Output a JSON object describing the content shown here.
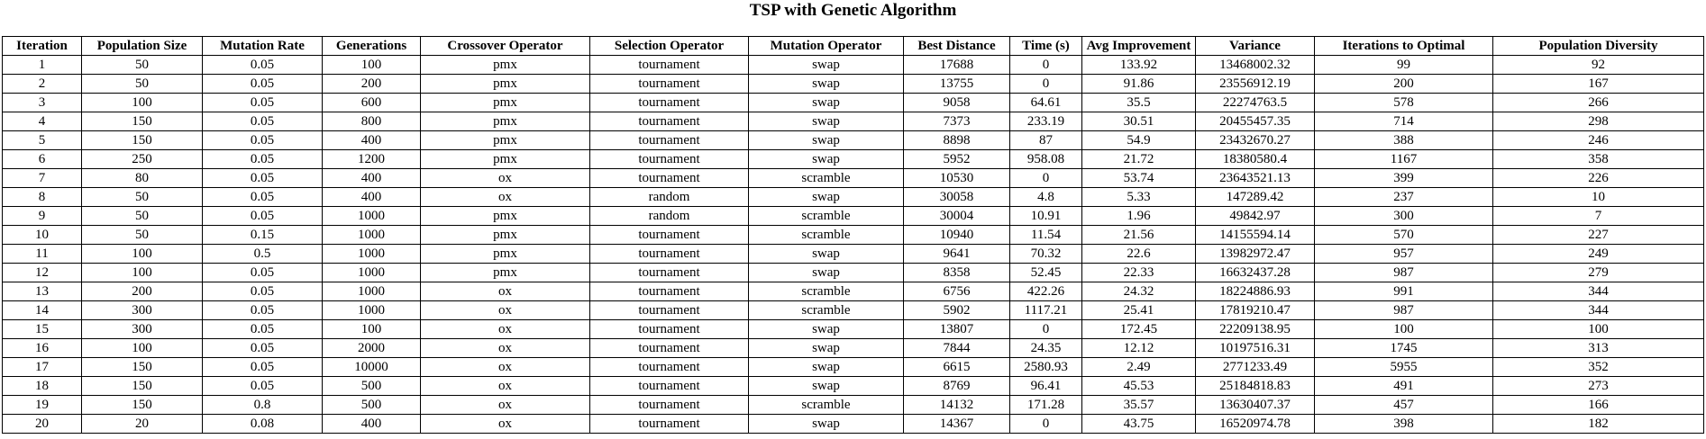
{
  "title": "TSP with Genetic Algorithm",
  "columns": [
    "Iteration",
    "Population Size",
    "Mutation Rate",
    "Generations",
    "Crossover Operator",
    "Selection Operator",
    "Mutation Operator",
    "Best Distance",
    "Time (s)",
    "Avg Improvement",
    "Variance",
    "Iterations to Optimal",
    "Population Diversity"
  ],
  "rows": [
    [
      "1",
      "50",
      "0.05",
      "100",
      "pmx",
      "tournament",
      "swap",
      "17688",
      "0",
      "133.92",
      "13468002.32",
      "99",
      "92"
    ],
    [
      "2",
      "50",
      "0.05",
      "200",
      "pmx",
      "tournament",
      "swap",
      "13755",
      "0",
      "91.86",
      "23556912.19",
      "200",
      "167"
    ],
    [
      "3",
      "100",
      "0.05",
      "600",
      "pmx",
      "tournament",
      "swap",
      "9058",
      "64.61",
      "35.5",
      "22274763.5",
      "578",
      "266"
    ],
    [
      "4",
      "150",
      "0.05",
      "800",
      "pmx",
      "tournament",
      "swap",
      "7373",
      "233.19",
      "30.51",
      "20455457.35",
      "714",
      "298"
    ],
    [
      "5",
      "150",
      "0.05",
      "400",
      "pmx",
      "tournament",
      "swap",
      "8898",
      "87",
      "54.9",
      "23432670.27",
      "388",
      "246"
    ],
    [
      "6",
      "250",
      "0.05",
      "1200",
      "pmx",
      "tournament",
      "swap",
      "5952",
      "958.08",
      "21.72",
      "18380580.4",
      "1167",
      "358"
    ],
    [
      "7",
      "80",
      "0.05",
      "400",
      "ox",
      "tournament",
      "scramble",
      "10530",
      "0",
      "53.74",
      "23643521.13",
      "399",
      "226"
    ],
    [
      "8",
      "50",
      "0.05",
      "400",
      "ox",
      "random",
      "swap",
      "30058",
      "4.8",
      "5.33",
      "147289.42",
      "237",
      "10"
    ],
    [
      "9",
      "50",
      "0.05",
      "1000",
      "pmx",
      "random",
      "scramble",
      "30004",
      "10.91",
      "1.96",
      "49842.97",
      "300",
      "7"
    ],
    [
      "10",
      "50",
      "0.15",
      "1000",
      "pmx",
      "tournament",
      "scramble",
      "10940",
      "11.54",
      "21.56",
      "14155594.14",
      "570",
      "227"
    ],
    [
      "11",
      "100",
      "0.5",
      "1000",
      "pmx",
      "tournament",
      "swap",
      "9641",
      "70.32",
      "22.6",
      "13982972.47",
      "957",
      "249"
    ],
    [
      "12",
      "100",
      "0.05",
      "1000",
      "pmx",
      "tournament",
      "swap",
      "8358",
      "52.45",
      "22.33",
      "16632437.28",
      "987",
      "279"
    ],
    [
      "13",
      "200",
      "0.05",
      "1000",
      "ox",
      "tournament",
      "scramble",
      "6756",
      "422.26",
      "24.32",
      "18224886.93",
      "991",
      "344"
    ],
    [
      "14",
      "300",
      "0.05",
      "1000",
      "ox",
      "tournament",
      "scramble",
      "5902",
      "1117.21",
      "25.41",
      "17819210.47",
      "987",
      "344"
    ],
    [
      "15",
      "300",
      "0.05",
      "100",
      "ox",
      "tournament",
      "swap",
      "13807",
      "0",
      "172.45",
      "22209138.95",
      "100",
      "100"
    ],
    [
      "16",
      "100",
      "0.05",
      "2000",
      "ox",
      "tournament",
      "swap",
      "7844",
      "24.35",
      "12.12",
      "10197516.31",
      "1745",
      "313"
    ],
    [
      "17",
      "150",
      "0.05",
      "10000",
      "ox",
      "tournament",
      "swap",
      "6615",
      "2580.93",
      "2.49",
      "2771233.49",
      "5955",
      "352"
    ],
    [
      "18",
      "150",
      "0.05",
      "500",
      "ox",
      "tournament",
      "swap",
      "8769",
      "96.41",
      "45.53",
      "25184818.83",
      "491",
      "273"
    ],
    [
      "19",
      "150",
      "0.8",
      "500",
      "ox",
      "tournament",
      "scramble",
      "14132",
      "171.28",
      "35.57",
      "13630407.37",
      "457",
      "166"
    ],
    [
      "20",
      "20",
      "0.08",
      "400",
      "ox",
      "tournament",
      "swap",
      "14367",
      "0",
      "43.75",
      "16520974.78",
      "398",
      "182"
    ]
  ]
}
